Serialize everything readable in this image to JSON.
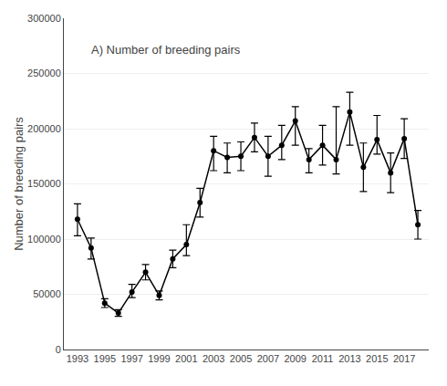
{
  "chart_data": {
    "type": "line",
    "title": "A) Number of breeding pairs",
    "ylabel": "Number of breeding pairs",
    "x": [
      1993,
      1994,
      1995,
      1996,
      1997,
      1998,
      1999,
      2000,
      2001,
      2002,
      2003,
      2004,
      2005,
      2006,
      2007,
      2008,
      2009,
      2010,
      2011,
      2012,
      2013,
      2014,
      2015,
      2016,
      2017,
      2018
    ],
    "values": [
      118000,
      92000,
      42000,
      33000,
      52000,
      70000,
      49000,
      82000,
      95000,
      133000,
      180000,
      174000,
      175000,
      192000,
      175000,
      185000,
      207000,
      172000,
      185000,
      172000,
      215000,
      165000,
      190000,
      160000,
      191000,
      113000
    ],
    "error_low": [
      15000,
      10000,
      4000,
      3000,
      5000,
      7000,
      4000,
      8000,
      10000,
      13000,
      18000,
      14000,
      13000,
      13000,
      18000,
      13000,
      22000,
      12000,
      18000,
      13000,
      30000,
      22000,
      13000,
      18000,
      18000,
      13000
    ],
    "error_high": [
      14000,
      9000,
      4000,
      3000,
      7000,
      7000,
      4000,
      8000,
      18000,
      13000,
      13000,
      13000,
      13000,
      13000,
      18000,
      18000,
      13000,
      10000,
      18000,
      48000,
      18000,
      22000,
      22000,
      18000,
      18000,
      13000
    ],
    "color": "#000000",
    "marker": "circle",
    "xlim": [
      1992.0,
      2018.8
    ],
    "xticks": [
      1993,
      1995,
      1997,
      1999,
      2001,
      2003,
      2005,
      2007,
      2009,
      2011,
      2013,
      2015,
      2017
    ],
    "ylim": [
      0,
      300000
    ],
    "yticks": [
      0,
      50000,
      100000,
      150000,
      200000,
      250000,
      300000
    ],
    "grid": "y"
  }
}
